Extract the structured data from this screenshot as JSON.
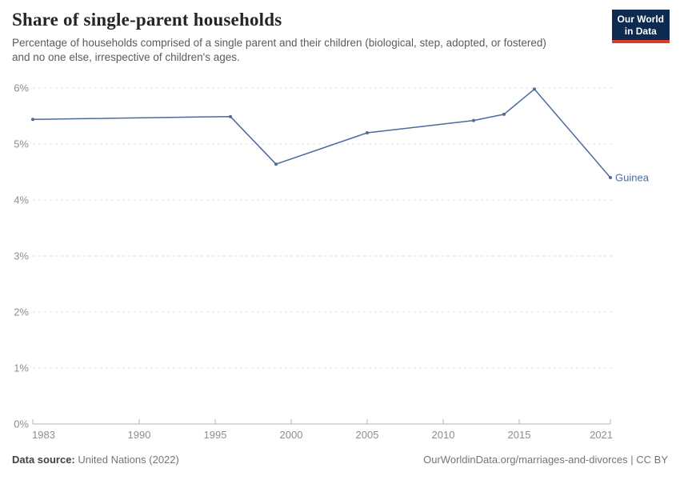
{
  "header": {
    "title": "Share of single-parent households",
    "subtitle": "Percentage of households comprised of a single parent and their children (biological, step, adopted, or fostered) and no one else, irrespective of children's ages.",
    "logo": {
      "line1": "Our World",
      "line2": "in Data"
    }
  },
  "chart_data": {
    "type": "line",
    "title": "Share of single-parent households",
    "series": [
      {
        "name": "Guinea",
        "color": "#4C6A9C",
        "x": [
          1983,
          1996,
          1999,
          2005,
          2012,
          2014,
          2016,
          2021
        ],
        "values": [
          5.44,
          5.49,
          4.64,
          5.2,
          5.42,
          5.53,
          5.98,
          4.4
        ]
      }
    ],
    "end_label": "Guinea",
    "xlabel": "",
    "ylabel": "",
    "x_ticks": [
      1983,
      1990,
      1995,
      2000,
      2005,
      2010,
      2015,
      2021
    ],
    "y_ticks": [
      0,
      1,
      2,
      3,
      4,
      5,
      6
    ],
    "y_tick_suffix": "%",
    "xlim": [
      1983,
      2021
    ],
    "ylim": [
      0,
      6
    ],
    "grid": true,
    "legend_position": "end-of-line"
  },
  "footer": {
    "data_source_label": "Data source:",
    "data_source_value": "United Nations (2022)",
    "credit": "OurWorldinData.org/marriages-and-divorces | CC BY"
  },
  "colors": {
    "line": "#4C6A9C",
    "grid": "#dddddd",
    "axis": "#b5b5b5",
    "tick_label": "#8e8e8e",
    "logo_bg": "#0d2a50",
    "logo_red": "#dc3d2b"
  }
}
